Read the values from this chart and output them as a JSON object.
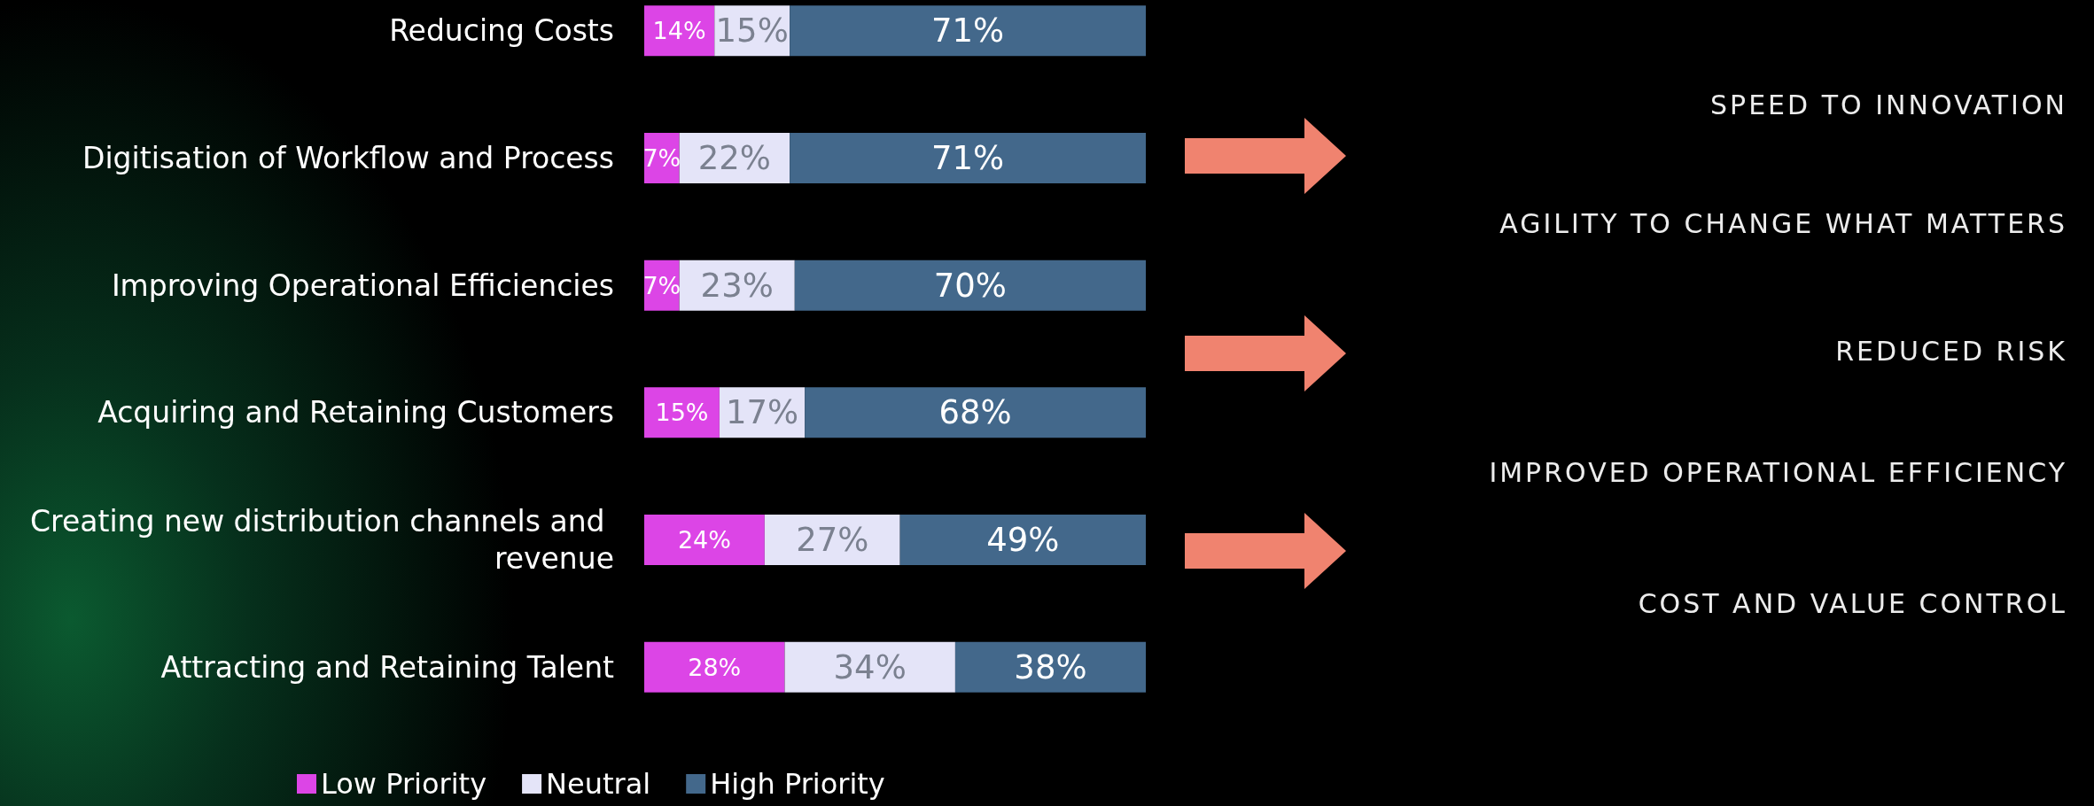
{
  "chart_data": {
    "type": "bar",
    "orientation": "horizontal",
    "stacked": true,
    "legend": "bottom",
    "categories": [
      "Reducing Costs",
      "Digitisation of Workflow and Process",
      "Improving Operational Efficiencies",
      "Acquiring and Retaining Customers",
      "Creating new distribution channels and revenue",
      "Attracting and Retaining Talent"
    ],
    "series": [
      {
        "name": "Low Priority",
        "color": "#dc45e6",
        "values": [
          14,
          7,
          7,
          15,
          24,
          28
        ],
        "value_labels": [
          "14%",
          "7%",
          "7%",
          "15%",
          "24%",
          "28%"
        ]
      },
      {
        "name": "Neutral",
        "color": "#e4e4f8",
        "values": [
          15,
          22,
          23,
          17,
          27,
          34
        ],
        "value_labels": [
          "15%",
          "22%",
          "23%",
          "17%",
          "27%",
          "34%"
        ]
      },
      {
        "name": "High Priority",
        "color": "#43688b",
        "values": [
          71,
          71,
          70,
          68,
          49,
          38
        ],
        "value_labels": [
          "71%",
          "71%",
          "70%",
          "68%",
          "49%",
          "38%"
        ]
      }
    ],
    "annotations": [
      "SPEED TO INNOVATION",
      "AGILITY TO CHANGE WHAT MATTERS",
      "REDUCED RISK",
      "IMPROVED OPERATIONAL EFFICIENCY",
      "COST AND VALUE CONTROL"
    ]
  }
}
